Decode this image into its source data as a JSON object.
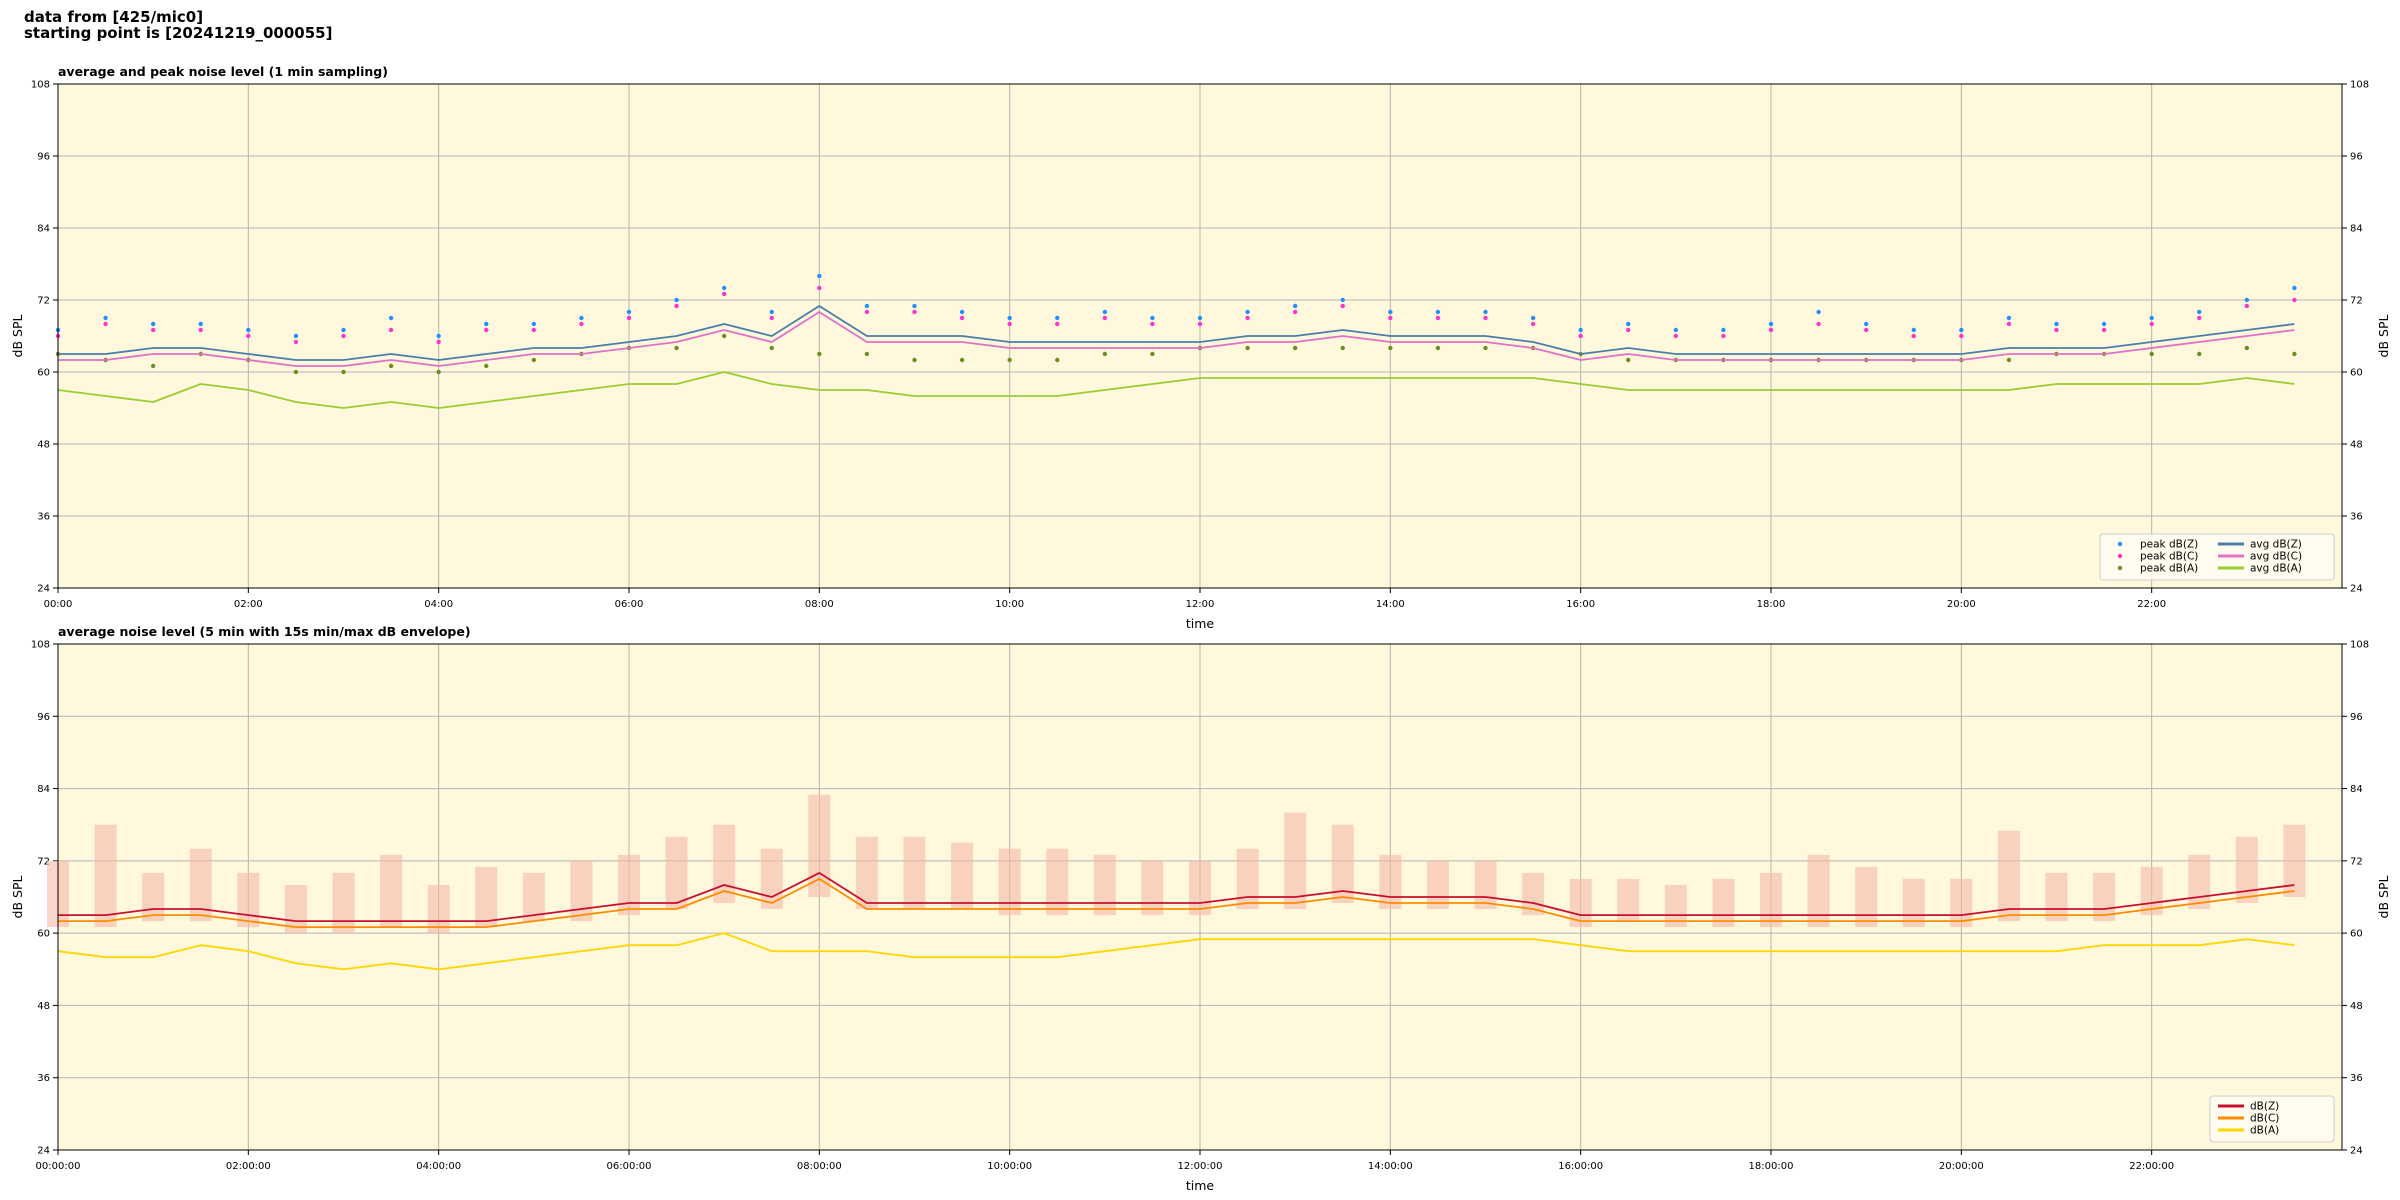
{
  "header": {
    "line1": "data from [425/mic0]",
    "line2": "starting point is [20241219_000055]"
  },
  "chart_data": [
    {
      "type": "line",
      "title": "average and peak noise level (1 min sampling)",
      "xlabel": "time",
      "ylabel": "dB SPL",
      "x": [
        0,
        0.5,
        1,
        1.5,
        2,
        2.5,
        3,
        3.5,
        4,
        4.5,
        5,
        5.5,
        6,
        6.5,
        7,
        7.5,
        8,
        8.5,
        9,
        9.5,
        10,
        10.5,
        11,
        11.5,
        12,
        12.5,
        13,
        13.5,
        14,
        14.5,
        15,
        15.5,
        16,
        16.5,
        17,
        17.5,
        18,
        18.5,
        19,
        19.5,
        20,
        20.5,
        21,
        21.5,
        22,
        22.5,
        23,
        23.5
      ],
      "xlim": [
        0,
        24
      ],
      "xticks": [
        {
          "value": 0,
          "label": "00:00"
        },
        {
          "value": 2,
          "label": "02:00"
        },
        {
          "value": 4,
          "label": "04:00"
        },
        {
          "value": 6,
          "label": "06:00"
        },
        {
          "value": 8,
          "label": "08:00"
        },
        {
          "value": 10,
          "label": "10:00"
        },
        {
          "value": 12,
          "label": "12:00"
        },
        {
          "value": 14,
          "label": "14:00"
        },
        {
          "value": 16,
          "label": "16:00"
        },
        {
          "value": 18,
          "label": "18:00"
        },
        {
          "value": 20,
          "label": "20:00"
        },
        {
          "value": 22,
          "label": "22:00"
        }
      ],
      "ylim": [
        24,
        108
      ],
      "yticks": [
        24,
        36,
        48,
        60,
        72,
        84,
        96,
        108
      ],
      "grid": true,
      "legend": "lower right",
      "legend_columns": 2,
      "series": [
        {
          "name": "peak dB(Z)",
          "type": "scatter",
          "color": "#1e90ff",
          "values": [
            67,
            69,
            68,
            68,
            67,
            66,
            67,
            69,
            66,
            68,
            68,
            69,
            70,
            72,
            74,
            70,
            76,
            71,
            71,
            70,
            69,
            69,
            70,
            69,
            69,
            70,
            71,
            72,
            70,
            70,
            70,
            69,
            67,
            68,
            67,
            67,
            68,
            70,
            68,
            67,
            67,
            69,
            68,
            68,
            69,
            70,
            72,
            74
          ]
        },
        {
          "name": "peak dB(C)",
          "type": "scatter",
          "color": "#ff33cc",
          "values": [
            66,
            68,
            67,
            67,
            66,
            65,
            66,
            67,
            65,
            67,
            67,
            68,
            69,
            71,
            73,
            69,
            74,
            70,
            70,
            69,
            68,
            68,
            69,
            68,
            68,
            69,
            70,
            71,
            69,
            69,
            69,
            68,
            66,
            67,
            66,
            66,
            67,
            68,
            67,
            66,
            66,
            68,
            67,
            67,
            68,
            69,
            71,
            72
          ]
        },
        {
          "name": "peak dB(A)",
          "type": "scatter",
          "color": "#6b8e23",
          "values": [
            63,
            62,
            61,
            63,
            62,
            60,
            60,
            61,
            60,
            61,
            62,
            63,
            64,
            64,
            66,
            64,
            63,
            63,
            62,
            62,
            62,
            62,
            63,
            63,
            64,
            64,
            64,
            64,
            64,
            64,
            64,
            64,
            63,
            62,
            62,
            62,
            62,
            62,
            62,
            62,
            62,
            62,
            63,
            63,
            63,
            63,
            64,
            63
          ]
        },
        {
          "name": "avg dB(Z)",
          "type": "line",
          "color": "#4a7ea8",
          "values": [
            63,
            63,
            64,
            64,
            63,
            62,
            62,
            63,
            62,
            63,
            64,
            64,
            65,
            66,
            68,
            66,
            71,
            66,
            66,
            66,
            65,
            65,
            65,
            65,
            65,
            66,
            66,
            67,
            66,
            66,
            66,
            65,
            63,
            64,
            63,
            63,
            63,
            63,
            63,
            63,
            63,
            64,
            64,
            64,
            65,
            66,
            67,
            68
          ]
        },
        {
          "name": "avg dB(C)",
          "type": "line",
          "color": "#e070c8",
          "values": [
            62,
            62,
            63,
            63,
            62,
            61,
            61,
            62,
            61,
            62,
            63,
            63,
            64,
            65,
            67,
            65,
            70,
            65,
            65,
            65,
            64,
            64,
            64,
            64,
            64,
            65,
            65,
            66,
            65,
            65,
            65,
            64,
            62,
            63,
            62,
            62,
            62,
            62,
            62,
            62,
            62,
            63,
            63,
            63,
            64,
            65,
            66,
            67
          ]
        },
        {
          "name": "avg dB(A)",
          "type": "line",
          "color": "#9acd32",
          "values": [
            57,
            56,
            55,
            58,
            57,
            55,
            54,
            55,
            54,
            55,
            56,
            57,
            58,
            58,
            60,
            58,
            57,
            57,
            56,
            56,
            56,
            56,
            57,
            58,
            59,
            59,
            59,
            59,
            59,
            59,
            59,
            59,
            58,
            57,
            57,
            57,
            57,
            57,
            57,
            57,
            57,
            57,
            58,
            58,
            58,
            58,
            59,
            58
          ]
        }
      ]
    },
    {
      "type": "line",
      "title": "average noise level (5 min with 15s min/max dB envelope)",
      "xlabel": "time",
      "ylabel": "dB SPL",
      "x": [
        0,
        0.5,
        1,
        1.5,
        2,
        2.5,
        3,
        3.5,
        4,
        4.5,
        5,
        5.5,
        6,
        6.5,
        7,
        7.5,
        8,
        8.5,
        9,
        9.5,
        10,
        10.5,
        11,
        11.5,
        12,
        12.5,
        13,
        13.5,
        14,
        14.5,
        15,
        15.5,
        16,
        16.5,
        17,
        17.5,
        18,
        18.5,
        19,
        19.5,
        20,
        20.5,
        21,
        21.5,
        22,
        22.5,
        23,
        23.5
      ],
      "xlim": [
        0,
        24
      ],
      "xticks": [
        {
          "value": 0,
          "label": "00:00:00"
        },
        {
          "value": 2,
          "label": "02:00:00"
        },
        {
          "value": 4,
          "label": "04:00:00"
        },
        {
          "value": 6,
          "label": "06:00:00"
        },
        {
          "value": 8,
          "label": "08:00:00"
        },
        {
          "value": 10,
          "label": "10:00:00"
        },
        {
          "value": 12,
          "label": "12:00:00"
        },
        {
          "value": 14,
          "label": "14:00:00"
        },
        {
          "value": 16,
          "label": "16:00:00"
        },
        {
          "value": 18,
          "label": "18:00:00"
        },
        {
          "value": 20,
          "label": "20:00:00"
        },
        {
          "value": 22,
          "label": "22:00:00"
        }
      ],
      "ylim": [
        24,
        108
      ],
      "yticks": [
        24,
        36,
        48,
        60,
        72,
        84,
        96,
        108
      ],
      "grid": true,
      "legend": "lower right",
      "legend_columns": 1,
      "envelope": {
        "color": "#f5b9a8",
        "low": [
          61,
          61,
          62,
          62,
          61,
          60,
          60,
          61,
          60,
          61,
          62,
          62,
          63,
          64,
          65,
          64,
          66,
          64,
          64,
          64,
          63,
          63,
          63,
          63,
          63,
          64,
          64,
          65,
          64,
          64,
          64,
          63,
          61,
          62,
          61,
          61,
          61,
          61,
          61,
          61,
          61,
          62,
          62,
          62,
          63,
          64,
          65,
          66
        ],
        "high": [
          72,
          78,
          70,
          74,
          70,
          68,
          70,
          73,
          68,
          71,
          70,
          72,
          73,
          76,
          78,
          74,
          83,
          76,
          76,
          75,
          74,
          74,
          73,
          72,
          72,
          74,
          80,
          78,
          73,
          72,
          72,
          70,
          69,
          69,
          68,
          69,
          70,
          73,
          71,
          69,
          69,
          77,
          70,
          70,
          71,
          73,
          76,
          78
        ]
      },
      "series": [
        {
          "name": "dB(Z)",
          "type": "line",
          "color": "#c8102e",
          "values": [
            63,
            63,
            64,
            64,
            63,
            62,
            62,
            62,
            62,
            62,
            63,
            64,
            65,
            65,
            68,
            66,
            70,
            65,
            65,
            65,
            65,
            65,
            65,
            65,
            65,
            66,
            66,
            67,
            66,
            66,
            66,
            65,
            63,
            63,
            63,
            63,
            63,
            63,
            63,
            63,
            63,
            64,
            64,
            64,
            65,
            66,
            67,
            68
          ]
        },
        {
          "name": "dB(C)",
          "type": "line",
          "color": "#ff8c00",
          "values": [
            62,
            62,
            63,
            63,
            62,
            61,
            61,
            61,
            61,
            61,
            62,
            63,
            64,
            64,
            67,
            65,
            69,
            64,
            64,
            64,
            64,
            64,
            64,
            64,
            64,
            65,
            65,
            66,
            65,
            65,
            65,
            64,
            62,
            62,
            62,
            62,
            62,
            62,
            62,
            62,
            62,
            63,
            63,
            63,
            64,
            65,
            66,
            67
          ]
        },
        {
          "name": "dB(A)",
          "type": "line",
          "color": "#ffd700",
          "values": [
            57,
            56,
            56,
            58,
            57,
            55,
            54,
            55,
            54,
            55,
            56,
            57,
            58,
            58,
            60,
            57,
            57,
            57,
            56,
            56,
            56,
            56,
            57,
            58,
            59,
            59,
            59,
            59,
            59,
            59,
            59,
            59,
            58,
            57,
            57,
            57,
            57,
            57,
            57,
            57,
            57,
            57,
            57,
            58,
            58,
            58,
            59,
            58
          ]
        }
      ]
    }
  ]
}
